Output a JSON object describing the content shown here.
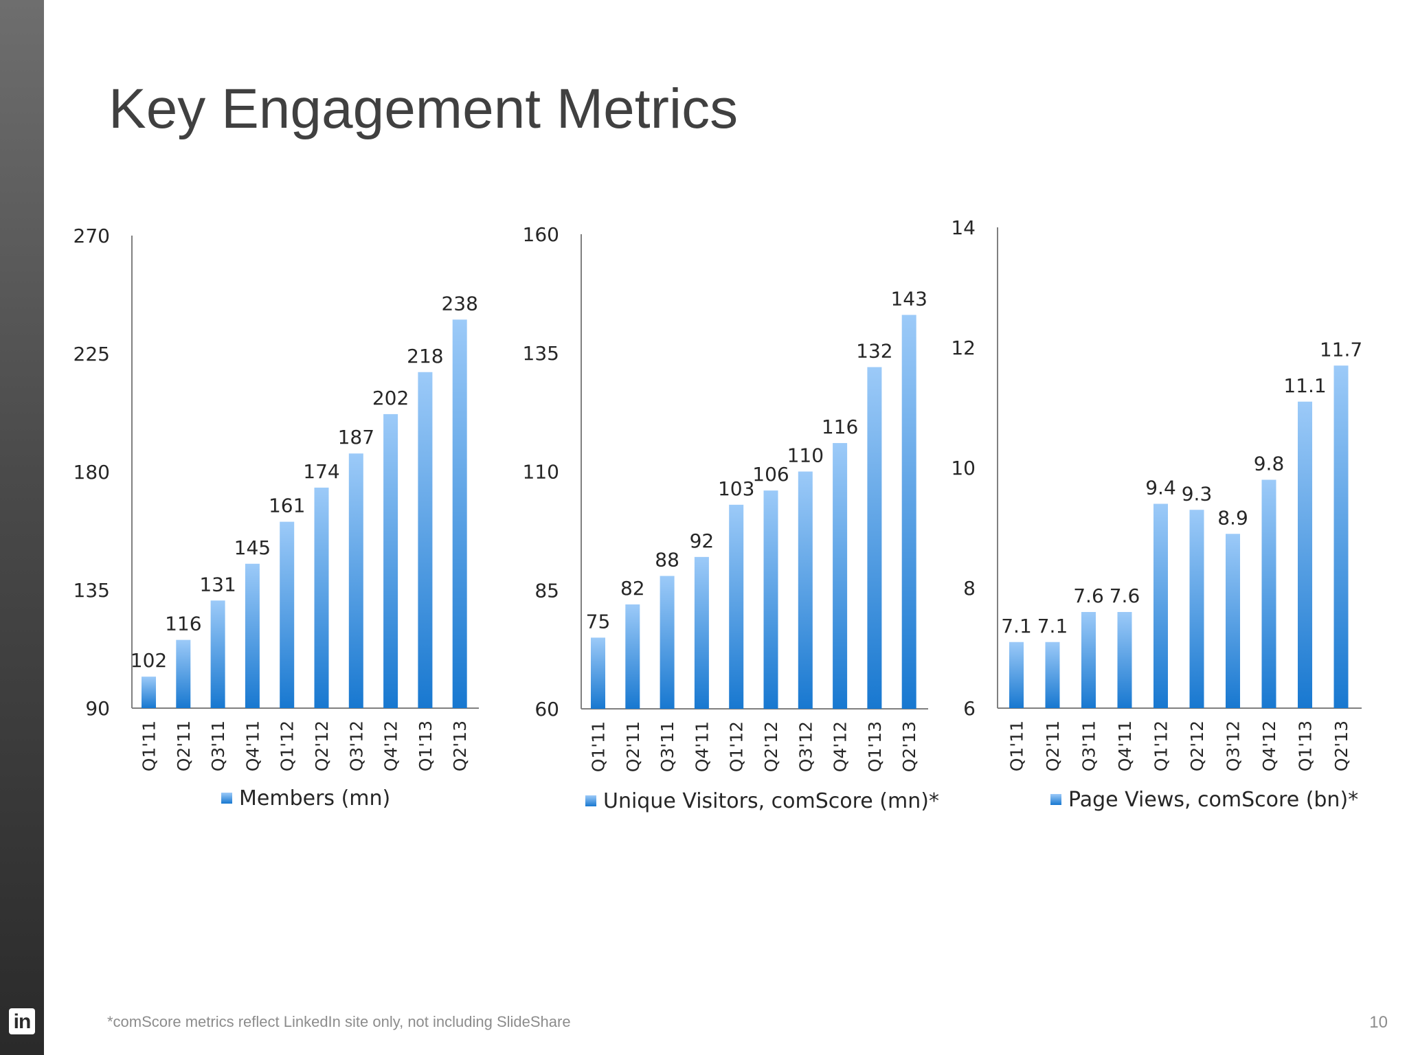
{
  "title": "Key Engagement Metrics",
  "footnote": "*comScore metrics reflect LinkedIn site only, not including SlideShare",
  "page_number": "10",
  "brand_mark": "in",
  "colors": {
    "bar_top": "#9ccaf8",
    "bar_bottom": "#1878d0",
    "axis": "#7f7f7f",
    "sidebar": "#3a3a3a"
  },
  "chart_data": [
    {
      "type": "bar",
      "categories": [
        "Q1'11",
        "Q2'11",
        "Q3'11",
        "Q4'11",
        "Q1'12",
        "Q2'12",
        "Q3'12",
        "Q4'12",
        "Q1'13",
        "Q2'13"
      ],
      "series": [
        {
          "name": "Members (mn)",
          "values": [
            102,
            116,
            131,
            145,
            161,
            174,
            187,
            202,
            218,
            238
          ]
        }
      ],
      "ylim": [
        90,
        270
      ],
      "yticks": [
        90,
        135,
        180,
        225,
        270
      ],
      "legend": "bottom",
      "grid": false
    },
    {
      "type": "bar",
      "categories": [
        "Q1'11",
        "Q2'11",
        "Q3'11",
        "Q4'11",
        "Q1'12",
        "Q2'12",
        "Q3'12",
        "Q4'12",
        "Q1'13",
        "Q2'13"
      ],
      "series": [
        {
          "name": "Unique Visitors, comScore (mn)*",
          "values": [
            75,
            82,
            88,
            92,
            103,
            106,
            110,
            116,
            132,
            143
          ]
        }
      ],
      "ylim": [
        60,
        160
      ],
      "yticks": [
        60,
        85,
        110,
        135,
        160
      ],
      "legend": "bottom",
      "grid": false
    },
    {
      "type": "bar",
      "categories": [
        "Q1'11",
        "Q2'11",
        "Q3'11",
        "Q4'11",
        "Q1'12",
        "Q2'12",
        "Q3'12",
        "Q4'12",
        "Q1'13",
        "Q2'13"
      ],
      "series": [
        {
          "name": "Page Views, comScore (bn)*",
          "values": [
            7.1,
            7.1,
            7.6,
            7.6,
            9.4,
            9.3,
            8.9,
            9.8,
            11.1,
            11.7
          ]
        }
      ],
      "ylim": [
        6,
        14
      ],
      "yticks": [
        6,
        8,
        10,
        12,
        14
      ],
      "legend": "bottom",
      "grid": false
    }
  ]
}
